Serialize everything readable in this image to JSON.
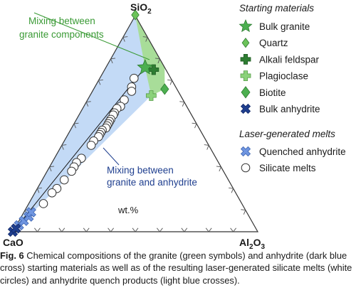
{
  "chart_data": {
    "type": "scatter",
    "diagram_type": "ternary",
    "apices": {
      "top": {
        "base": "SiO",
        "sub": "2"
      },
      "left": {
        "base": "CaO",
        "sub": ""
      },
      "right": {
        "base": "Al",
        "sub": "2",
        "base2": "O",
        "sub2": "3"
      }
    },
    "unit_label": "wt.%",
    "annotations": {
      "granite_mixing": [
        "Mixing between",
        "granite components"
      ],
      "anhydrite_mixing": [
        "Mixing between",
        "granite and anhydrite"
      ]
    },
    "legend": {
      "starting_title": "Starting materials",
      "starting_items": [
        {
          "label": "Bulk granite",
          "symbol": "star",
          "color": "#4caf50"
        },
        {
          "label": "Quartz",
          "symbol": "diamond",
          "color": "#6cc35a"
        },
        {
          "label": "Alkali feldspar",
          "symbol": "plus",
          "color": "#2e7d32"
        },
        {
          "label": "Plagioclase",
          "symbol": "plus",
          "color": "#8bd27a"
        },
        {
          "label": "Biotite",
          "symbol": "diamond",
          "color": "#4caf50"
        },
        {
          "label": "Bulk anhydrite",
          "symbol": "cross",
          "color": "#1f3f8f"
        }
      ],
      "melts_title": "Laser-generated melts",
      "melts_items": [
        {
          "label": "Quenched anhydrite",
          "symbol": "cross",
          "color": "#6f95e0"
        },
        {
          "label": "Silicate melts",
          "symbol": "circle",
          "color": "#ffffff"
        }
      ]
    },
    "points": {
      "quartz": {
        "sio2": 100,
        "cao": 0,
        "al2o3": 0
      },
      "bulk_granite": {
        "sio2": 76,
        "cao": 8,
        "al2o3": 16
      },
      "alkali_feldspar": {
        "sio2": 75,
        "cao": 5,
        "al2o3": 20
      },
      "plagioclase": {
        "sio2": 63,
        "cao": 12,
        "al2o3": 25
      },
      "biotite": {
        "sio2": 66,
        "cao": 5,
        "al2o3": 29
      },
      "bulk_anhydrite": [
        {
          "sio2": 0,
          "cao": 100,
          "al2o3": 0
        },
        {
          "sio2": 1.5,
          "cao": 98,
          "al2o3": 0.5
        }
      ],
      "quenched_anhydrite": [
        {
          "sio2": 3,
          "cao": 96,
          "al2o3": 1
        },
        {
          "sio2": 5,
          "cao": 93,
          "al2o3": 2
        },
        {
          "sio2": 7,
          "cao": 90,
          "al2o3": 3
        },
        {
          "sio2": 9,
          "cao": 88,
          "al2o3": 3
        }
      ],
      "silicate_melts": [
        {
          "sio2": 67,
          "cao": 18,
          "al2o3": 15
        },
        {
          "sio2": 65,
          "cao": 19,
          "al2o3": 16
        },
        {
          "sio2": 61,
          "cao": 24,
          "al2o3": 15
        },
        {
          "sio2": 58,
          "cao": 27,
          "al2o3": 15
        },
        {
          "sio2": 57,
          "cao": 29,
          "al2o3": 14
        },
        {
          "sio2": 55,
          "cao": 31,
          "al2o3": 14
        },
        {
          "sio2": 54,
          "cao": 32,
          "al2o3": 14
        },
        {
          "sio2": 52,
          "cao": 34,
          "al2o3": 14
        },
        {
          "sio2": 51,
          "cao": 35,
          "al2o3": 14
        },
        {
          "sio2": 50,
          "cao": 36,
          "al2o3": 14
        },
        {
          "sio2": 49,
          "cao": 37,
          "al2o3": 14
        },
        {
          "sio2": 48,
          "cao": 38,
          "al2o3": 14
        },
        {
          "sio2": 47,
          "cao": 40,
          "al2o3": 13
        },
        {
          "sio2": 46,
          "cao": 41,
          "al2o3": 13
        },
        {
          "sio2": 45,
          "cao": 42,
          "al2o3": 13
        },
        {
          "sio2": 44,
          "cao": 43,
          "al2o3": 13
        },
        {
          "sio2": 42,
          "cao": 46,
          "al2o3": 12
        },
        {
          "sio2": 40,
          "cao": 48,
          "al2o3": 12
        },
        {
          "sio2": 34,
          "cao": 55,
          "al2o3": 11
        },
        {
          "sio2": 32,
          "cao": 58,
          "al2o3": 10
        },
        {
          "sio2": 30,
          "cao": 60,
          "al2o3": 10
        },
        {
          "sio2": 28,
          "cao": 62,
          "al2o3": 10
        },
        {
          "sio2": 24,
          "cao": 67,
          "al2o3": 9
        },
        {
          "sio2": 20,
          "cao": 72,
          "al2o3": 8
        },
        {
          "sio2": 18,
          "cao": 75,
          "al2o3": 7
        },
        {
          "sio2": 13,
          "cao": 81,
          "al2o3": 6
        }
      ],
      "silicate_melt_top": {
        "sio2": 71,
        "cao": 15,
        "al2o3": 14
      },
      "mixing_line": [
        {
          "sio2": 76,
          "cao": 8,
          "al2o3": 16
        },
        {
          "sio2": 0,
          "cao": 100,
          "al2o3": 0
        }
      ],
      "green_field": [
        {
          "sio2": 100,
          "cao": 0,
          "al2o3": 0
        },
        {
          "sio2": 76,
          "cao": 0,
          "al2o3": 24
        },
        {
          "sio2": 66,
          "cao": 5,
          "al2o3": 29
        },
        {
          "sio2": 63,
          "cao": 12,
          "al2o3": 25
        },
        {
          "sio2": 76,
          "cao": 8,
          "al2o3": 16
        }
      ],
      "blue_field": [
        {
          "sio2": 100,
          "cao": 0,
          "al2o3": 0
        },
        {
          "sio2": 63,
          "cao": 12,
          "al2o3": 25
        },
        {
          "sio2": 0,
          "cao": 100,
          "al2o3": 0
        }
      ]
    },
    "ticks_per_side": 10,
    "colors": {
      "green_fill": "#a8dd99",
      "blue_fill": "#b9d3f5",
      "green_text": "#3a9a35",
      "blue_text": "#1f3f8f",
      "axis": "#333333"
    }
  },
  "caption": {
    "label": "Fig. 6",
    "text": " Chemical compositions of the granite (green symbols) and anhydrite (dark blue cross) starting materials as well as of the resulting laser-generated silicate melts (white circles) and anhydrite quench products (light blue crosses)."
  }
}
